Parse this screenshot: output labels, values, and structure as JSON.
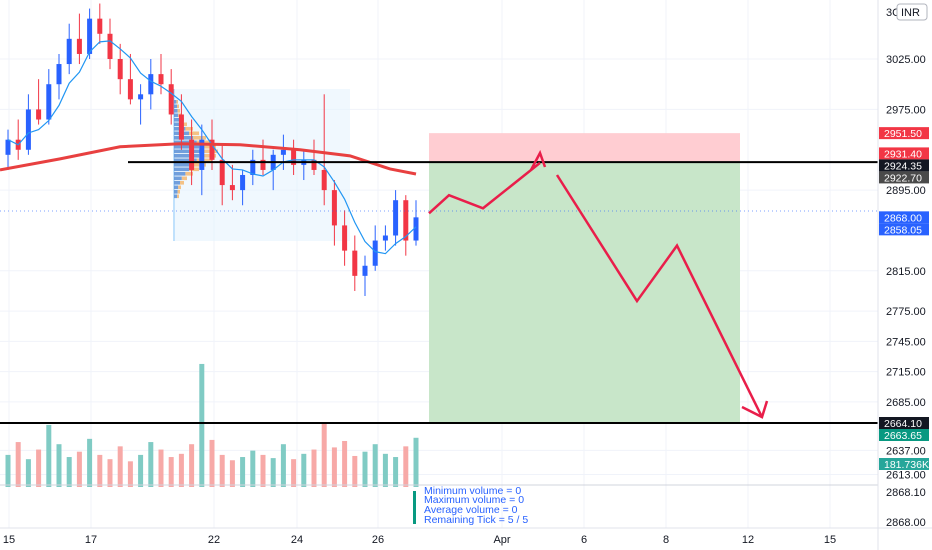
{
  "chart_data": {
    "type": "candlestick",
    "title": "",
    "currency": "INR",
    "currency_prefix": "3C",
    "y_ticks": [
      3025,
      2975,
      2895,
      2815,
      2775,
      2745,
      2715,
      2685,
      2637,
      2613
    ],
    "x_ticks": [
      "15",
      "17",
      "22",
      "24",
      "26",
      "Apr",
      "6",
      "8",
      "12",
      "15"
    ],
    "ylim": [
      2600,
      3080
    ],
    "price_labels": [
      {
        "value": 2951.5,
        "text": "2951.50",
        "color": "#f23645"
      },
      {
        "value": 2931.4,
        "text": "2931.40",
        "color": "#f23645"
      },
      {
        "value": 2924.35,
        "text": "2924.35",
        "color": "#131722"
      },
      {
        "value": 2922.7,
        "text": "2922.70",
        "color": "#4a4a4a"
      },
      {
        "value": 2868.0,
        "text": "2868.00",
        "color": "#2962ff"
      },
      {
        "value": 2858.05,
        "text": "2858.05",
        "color": "#2962ff"
      },
      {
        "value": 2664.1,
        "text": "2664.10",
        "color": "#131722"
      },
      {
        "value": 2663.65,
        "text": "2663.65",
        "color": "#089981"
      }
    ],
    "volume_label": {
      "text": "181.736K",
      "color": "#26a69a"
    },
    "horizontal_lines": [
      2922.7,
      2664.1
    ],
    "position": {
      "entry": 2922.7,
      "stop": 2951.5,
      "target": 2664.1
    },
    "projection_path": [
      2872,
      2890,
      2877,
      2922,
      2910,
      2785,
      2840,
      2670
    ],
    "candles": [
      {
        "o": 2930,
        "h": 2955,
        "l": 2915,
        "c": 2945
      },
      {
        "o": 2945,
        "h": 2965,
        "l": 2925,
        "c": 2935
      },
      {
        "o": 2935,
        "h": 2990,
        "l": 2930,
        "c": 2975
      },
      {
        "o": 2975,
        "h": 3005,
        "l": 2960,
        "c": 2965
      },
      {
        "o": 2965,
        "h": 3015,
        "l": 2960,
        "c": 3000
      },
      {
        "o": 3000,
        "h": 3030,
        "l": 2985,
        "c": 3020
      },
      {
        "o": 3020,
        "h": 3060,
        "l": 3010,
        "c": 3045
      },
      {
        "o": 3045,
        "h": 3070,
        "l": 3020,
        "c": 3030
      },
      {
        "o": 3030,
        "h": 3075,
        "l": 3025,
        "c": 3065
      },
      {
        "o": 3065,
        "h": 3080,
        "l": 3040,
        "c": 3050
      },
      {
        "o": 3050,
        "h": 3065,
        "l": 3015,
        "c": 3025
      },
      {
        "o": 3025,
        "h": 3040,
        "l": 2990,
        "c": 3005
      },
      {
        "o": 3005,
        "h": 3030,
        "l": 2980,
        "c": 2985
      },
      {
        "o": 2985,
        "h": 3000,
        "l": 2960,
        "c": 2990
      },
      {
        "o": 2990,
        "h": 3025,
        "l": 2975,
        "c": 3010
      },
      {
        "o": 3010,
        "h": 3030,
        "l": 2990,
        "c": 3000
      },
      {
        "o": 3000,
        "h": 3015,
        "l": 2960,
        "c": 2970
      },
      {
        "o": 2970,
        "h": 2990,
        "l": 2935,
        "c": 2945
      },
      {
        "o": 2945,
        "h": 2965,
        "l": 2900,
        "c": 2915
      },
      {
        "o": 2915,
        "h": 2960,
        "l": 2890,
        "c": 2945
      },
      {
        "o": 2945,
        "h": 2965,
        "l": 2915,
        "c": 2925
      },
      {
        "o": 2925,
        "h": 2940,
        "l": 2880,
        "c": 2900
      },
      {
        "o": 2900,
        "h": 2920,
        "l": 2885,
        "c": 2895
      },
      {
        "o": 2895,
        "h": 2915,
        "l": 2880,
        "c": 2910
      },
      {
        "o": 2910,
        "h": 2935,
        "l": 2900,
        "c": 2925
      },
      {
        "o": 2925,
        "h": 2945,
        "l": 2910,
        "c": 2915
      },
      {
        "o": 2915,
        "h": 2935,
        "l": 2895,
        "c": 2930
      },
      {
        "o": 2930,
        "h": 2950,
        "l": 2915,
        "c": 2935
      },
      {
        "o": 2935,
        "h": 2945,
        "l": 2910,
        "c": 2920
      },
      {
        "o": 2920,
        "h": 2935,
        "l": 2905,
        "c": 2925
      },
      {
        "o": 2925,
        "h": 2945,
        "l": 2910,
        "c": 2915
      },
      {
        "o": 2915,
        "h": 2990,
        "l": 2880,
        "c": 2895
      },
      {
        "o": 2895,
        "h": 2905,
        "l": 2840,
        "c": 2860
      },
      {
        "o": 2860,
        "h": 2875,
        "l": 2820,
        "c": 2835
      },
      {
        "o": 2835,
        "h": 2850,
        "l": 2795,
        "c": 2810
      },
      {
        "o": 2810,
        "h": 2830,
        "l": 2790,
        "c": 2820
      },
      {
        "o": 2820,
        "h": 2860,
        "l": 2815,
        "c": 2845
      },
      {
        "o": 2845,
        "h": 2860,
        "l": 2835,
        "c": 2850
      },
      {
        "o": 2850,
        "h": 2895,
        "l": 2840,
        "c": 2885
      },
      {
        "o": 2885,
        "h": 2890,
        "l": 2830,
        "c": 2845
      },
      {
        "o": 2845,
        "h": 2885,
        "l": 2840,
        "c": 2868
      }
    ],
    "volume": [
      30,
      42,
      26,
      35,
      58,
      40,
      28,
      33,
      45,
      30,
      26,
      38,
      24,
      30,
      42,
      35,
      28,
      31,
      40,
      115,
      44,
      30,
      25,
      28,
      34,
      30,
      27,
      40,
      26,
      31,
      35,
      60,
      37,
      43,
      29,
      33,
      40,
      31,
      28,
      38,
      46
    ]
  },
  "volume_info": {
    "minimum": "Minimum volume = 0",
    "maximum": "Maximum volume = 0",
    "average": "Average volume = 0",
    "remaining": "Remaining Tick = 5 / 5"
  },
  "lower_pane_ticks": [
    "2868.10",
    "2868.00"
  ],
  "colors": {
    "up": "#2962ff",
    "down": "#f23645",
    "vol_up": "#80cbc4",
    "vol_down": "#f7a9a7",
    "ma_long": "#e84040",
    "ma_short": "#2196f3",
    "target_zone": "#c8e6c9",
    "stop_zone": "#ffcdd2",
    "projection": "#e91e4a"
  }
}
